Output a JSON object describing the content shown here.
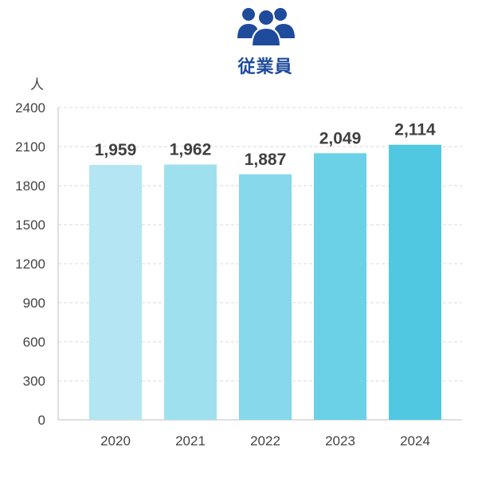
{
  "header": {
    "icon": "people-group-icon",
    "icon_color": "#1f4b9c"
  },
  "chart_data": {
    "type": "bar",
    "title": "従業員",
    "ylabel": "人",
    "xlabel": "",
    "categories": [
      "2020",
      "2021",
      "2022",
      "2023",
      "2024"
    ],
    "values": [
      1959,
      1962,
      1887,
      2049,
      2114
    ],
    "value_labels": [
      "1,959",
      "1,962",
      "1,887",
      "2,049",
      "2,114"
    ],
    "yticks": [
      0,
      300,
      600,
      900,
      1200,
      1500,
      1800,
      2100,
      2400
    ],
    "ylim": [
      0,
      2400
    ],
    "grid": true,
    "bar_colors": [
      "#b3e6f2",
      "#9fe0ee",
      "#86d8ea",
      "#6ad1e7",
      "#50c8e2"
    ]
  }
}
